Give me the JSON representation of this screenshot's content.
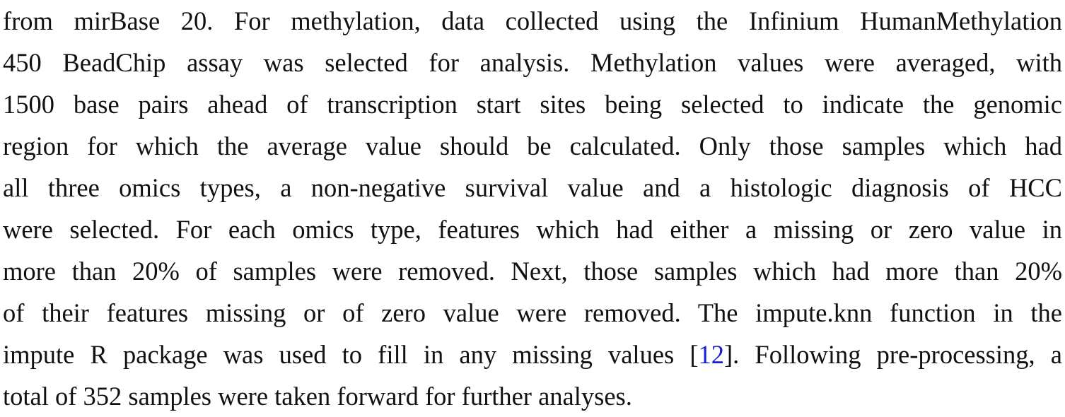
{
  "paragraph": {
    "lines": [
      "from mirBase 20. For methylation, data collected using the Infinium HumanMethylation",
      "450 BeadChip assay was selected for analysis. Methylation values were averaged, with",
      "1500 base pairs ahead of transcription start sites being selected to indicate the genomic",
      "region for which the average value should be calculated. Only those samples which had",
      "all three omics types, a non-negative survival value and a histologic diagnosis of HCC",
      "were selected. For each omics type, features which had either a missing or zero value in",
      "more than 20% of samples were removed. Next, those samples which had more than 20%",
      "of their features missing or of zero value were removed. The impute.knn function in the"
    ],
    "line9_before": "impute R package was used to fill in any missing values [",
    "citation": "12",
    "line9_after": "]. Following pre-processing, a",
    "line10": "total of 352 samples were taken forward for further analyses."
  }
}
